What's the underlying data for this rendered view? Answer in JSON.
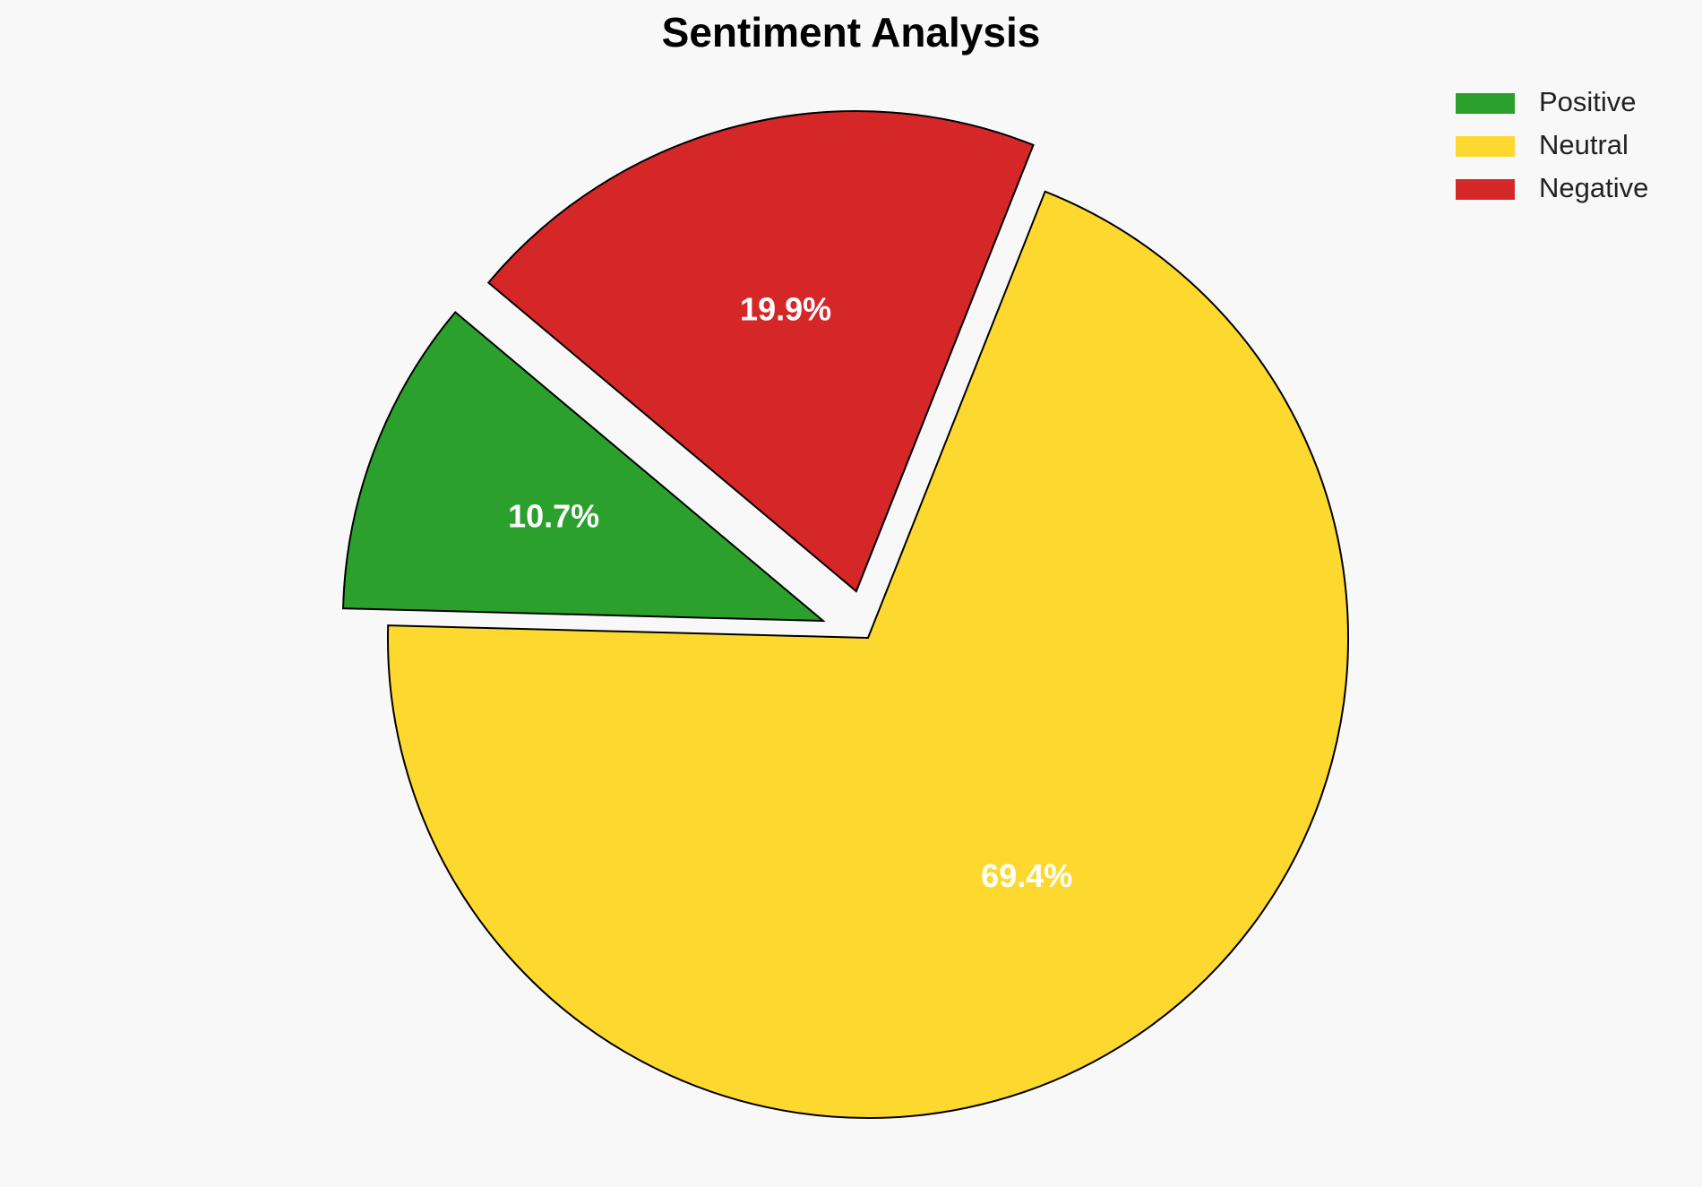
{
  "chart_data": {
    "type": "pie",
    "title": "Sentiment Analysis",
    "categories": [
      "Positive",
      "Neutral",
      "Negative"
    ],
    "values": [
      10.7,
      69.4,
      19.9
    ],
    "value_labels": [
      "10.7%",
      "69.4%",
      "19.9%"
    ],
    "colors": [
      "#2ca02c",
      "#fdd930",
      "#d62728"
    ],
    "exploded": [
      true,
      false,
      true
    ],
    "legend": "upper right"
  }
}
